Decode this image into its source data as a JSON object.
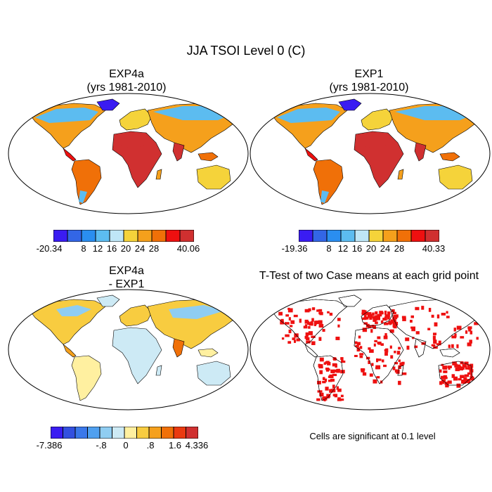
{
  "figure_title": "JJA TSOI Level 0 (C)",
  "panels": [
    {
      "id": "exp4a",
      "title_line1": "EXP4a",
      "title_line2": "(yrs 1981-2010)"
    },
    {
      "id": "exp1",
      "title_line1": "EXP1",
      "title_line2": "(yrs 1981-2010)"
    },
    {
      "id": "diff",
      "title_line1": "EXP4a",
      "title_line2": "- EXP1"
    },
    {
      "id": "ttest",
      "title_line1": "T-Test of two Case means at each grid point",
      "title_line2": ""
    }
  ],
  "colorbars": {
    "exp4a": {
      "colors": [
        "#3a1cf2",
        "#3366e6",
        "#2a8ef0",
        "#5cbcf0",
        "#bfe6f6",
        "#f5d33a",
        "#f5a01c",
        "#f07008",
        "#ee1010",
        "#d03030"
      ],
      "labels": [
        "-20.34",
        "8",
        "12",
        "16",
        "20",
        "24",
        "28",
        "40.06"
      ]
    },
    "exp1": {
      "colors": [
        "#3a1cf2",
        "#3366e6",
        "#2a8ef0",
        "#5cbcf0",
        "#bfe6f6",
        "#f5d33a",
        "#f5a01c",
        "#f07008",
        "#ee1010",
        "#d03030"
      ],
      "labels": [
        "-19.36",
        "8",
        "12",
        "16",
        "20",
        "24",
        "28",
        "40.33"
      ]
    },
    "diff": {
      "colors": [
        "#3a1cf2",
        "#3350e0",
        "#3a78ea",
        "#4fa0f0",
        "#8fcdf2",
        "#cdeaf5",
        "#fff0a0",
        "#f8cc40",
        "#f5a01c",
        "#f07008",
        "#ea3a10",
        "#d03030"
      ],
      "labels": [
        "-7.386",
        "-.8",
        "0",
        ".8",
        "1.6",
        "4.336"
      ]
    }
  },
  "significance_note": "Cells are significant at 0.1 level"
}
